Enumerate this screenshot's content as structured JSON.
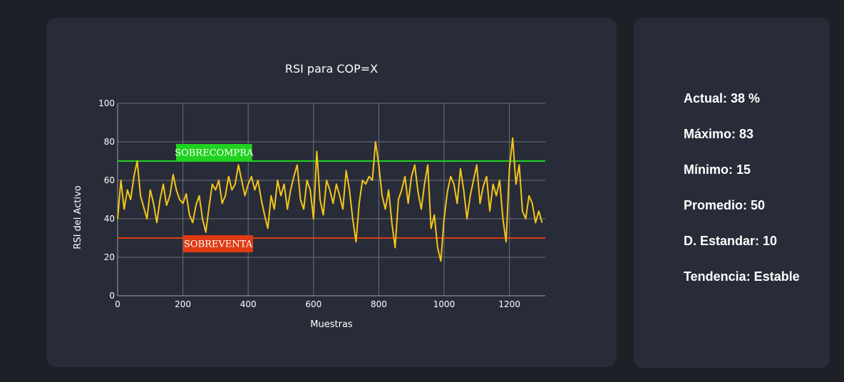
{
  "chart_data": {
    "type": "line",
    "title": "RSI para COP=X",
    "xlabel": "Muestras",
    "ylabel": "RSI del Activo",
    "xlim": [
      0,
      1310
    ],
    "ylim": [
      0,
      100
    ],
    "x_ticks": [
      0,
      200,
      400,
      600,
      800,
      1000,
      1200
    ],
    "y_ticks": [
      0,
      20,
      40,
      60,
      80,
      100
    ],
    "grid": true,
    "series": [
      {
        "color": "#f5c518",
        "x": [
          0,
          10,
          20,
          30,
          40,
          50,
          60,
          70,
          80,
          90,
          100,
          110,
          120,
          130,
          140,
          150,
          160,
          170,
          180,
          190,
          200,
          210,
          220,
          230,
          240,
          250,
          260,
          270,
          280,
          290,
          300,
          310,
          320,
          330,
          340,
          350,
          360,
          370,
          380,
          390,
          400,
          410,
          420,
          430,
          440,
          450,
          460,
          470,
          480,
          490,
          500,
          510,
          520,
          530,
          540,
          550,
          560,
          570,
          580,
          590,
          600,
          610,
          620,
          630,
          640,
          650,
          660,
          670,
          680,
          690,
          700,
          710,
          720,
          730,
          740,
          750,
          760,
          770,
          780,
          790,
          800,
          810,
          820,
          830,
          840,
          850,
          860,
          870,
          880,
          890,
          900,
          910,
          920,
          930,
          940,
          950,
          960,
          970,
          980,
          990,
          1000,
          1010,
          1020,
          1030,
          1040,
          1050,
          1060,
          1070,
          1080,
          1090,
          1100,
          1110,
          1120,
          1130,
          1140,
          1150,
          1160,
          1170,
          1180,
          1190,
          1200,
          1210,
          1220,
          1230,
          1240,
          1250,
          1260,
          1270,
          1280,
          1290,
          1300
        ],
        "y": [
          40,
          60,
          45,
          55,
          50,
          62,
          70,
          52,
          46,
          40,
          55,
          48,
          38,
          50,
          58,
          47,
          52,
          63,
          55,
          50,
          48,
          53,
          42,
          38,
          47,
          52,
          40,
          33,
          46,
          58,
          55,
          60,
          48,
          52,
          62,
          55,
          58,
          68,
          60,
          52,
          58,
          62,
          55,
          60,
          50,
          42,
          35,
          52,
          45,
          60,
          52,
          58,
          45,
          55,
          62,
          68,
          50,
          45,
          60,
          55,
          40,
          75,
          50,
          42,
          60,
          55,
          48,
          58,
          52,
          45,
          65,
          55,
          40,
          28,
          48,
          60,
          58,
          62,
          60,
          80,
          68,
          52,
          45,
          55,
          38,
          25,
          50,
          55,
          62,
          48,
          62,
          68,
          54,
          45,
          58,
          68,
          35,
          42,
          25,
          18,
          40,
          54,
          62,
          58,
          48,
          66,
          55,
          40,
          52,
          60,
          68,
          48,
          57,
          62,
          44,
          58,
          52,
          60,
          40,
          28,
          66,
          82,
          58,
          68,
          44,
          40,
          52,
          48,
          38,
          44,
          38
        ]
      }
    ],
    "bands": [
      {
        "label": "SOBRECOMPRA",
        "y": 70,
        "color": "#1fd21f"
      },
      {
        "label": "SOBREVENTA",
        "y": 30,
        "color": "#e03a12"
      }
    ]
  },
  "stats": [
    {
      "label": "Actual: 38 %"
    },
    {
      "label": "Máximo: 83"
    },
    {
      "label": "Mínimo: 15"
    },
    {
      "label": "Promedio: 50"
    },
    {
      "label": "D. Estandar: 10"
    },
    {
      "label": "Tendencia: Estable"
    }
  ]
}
